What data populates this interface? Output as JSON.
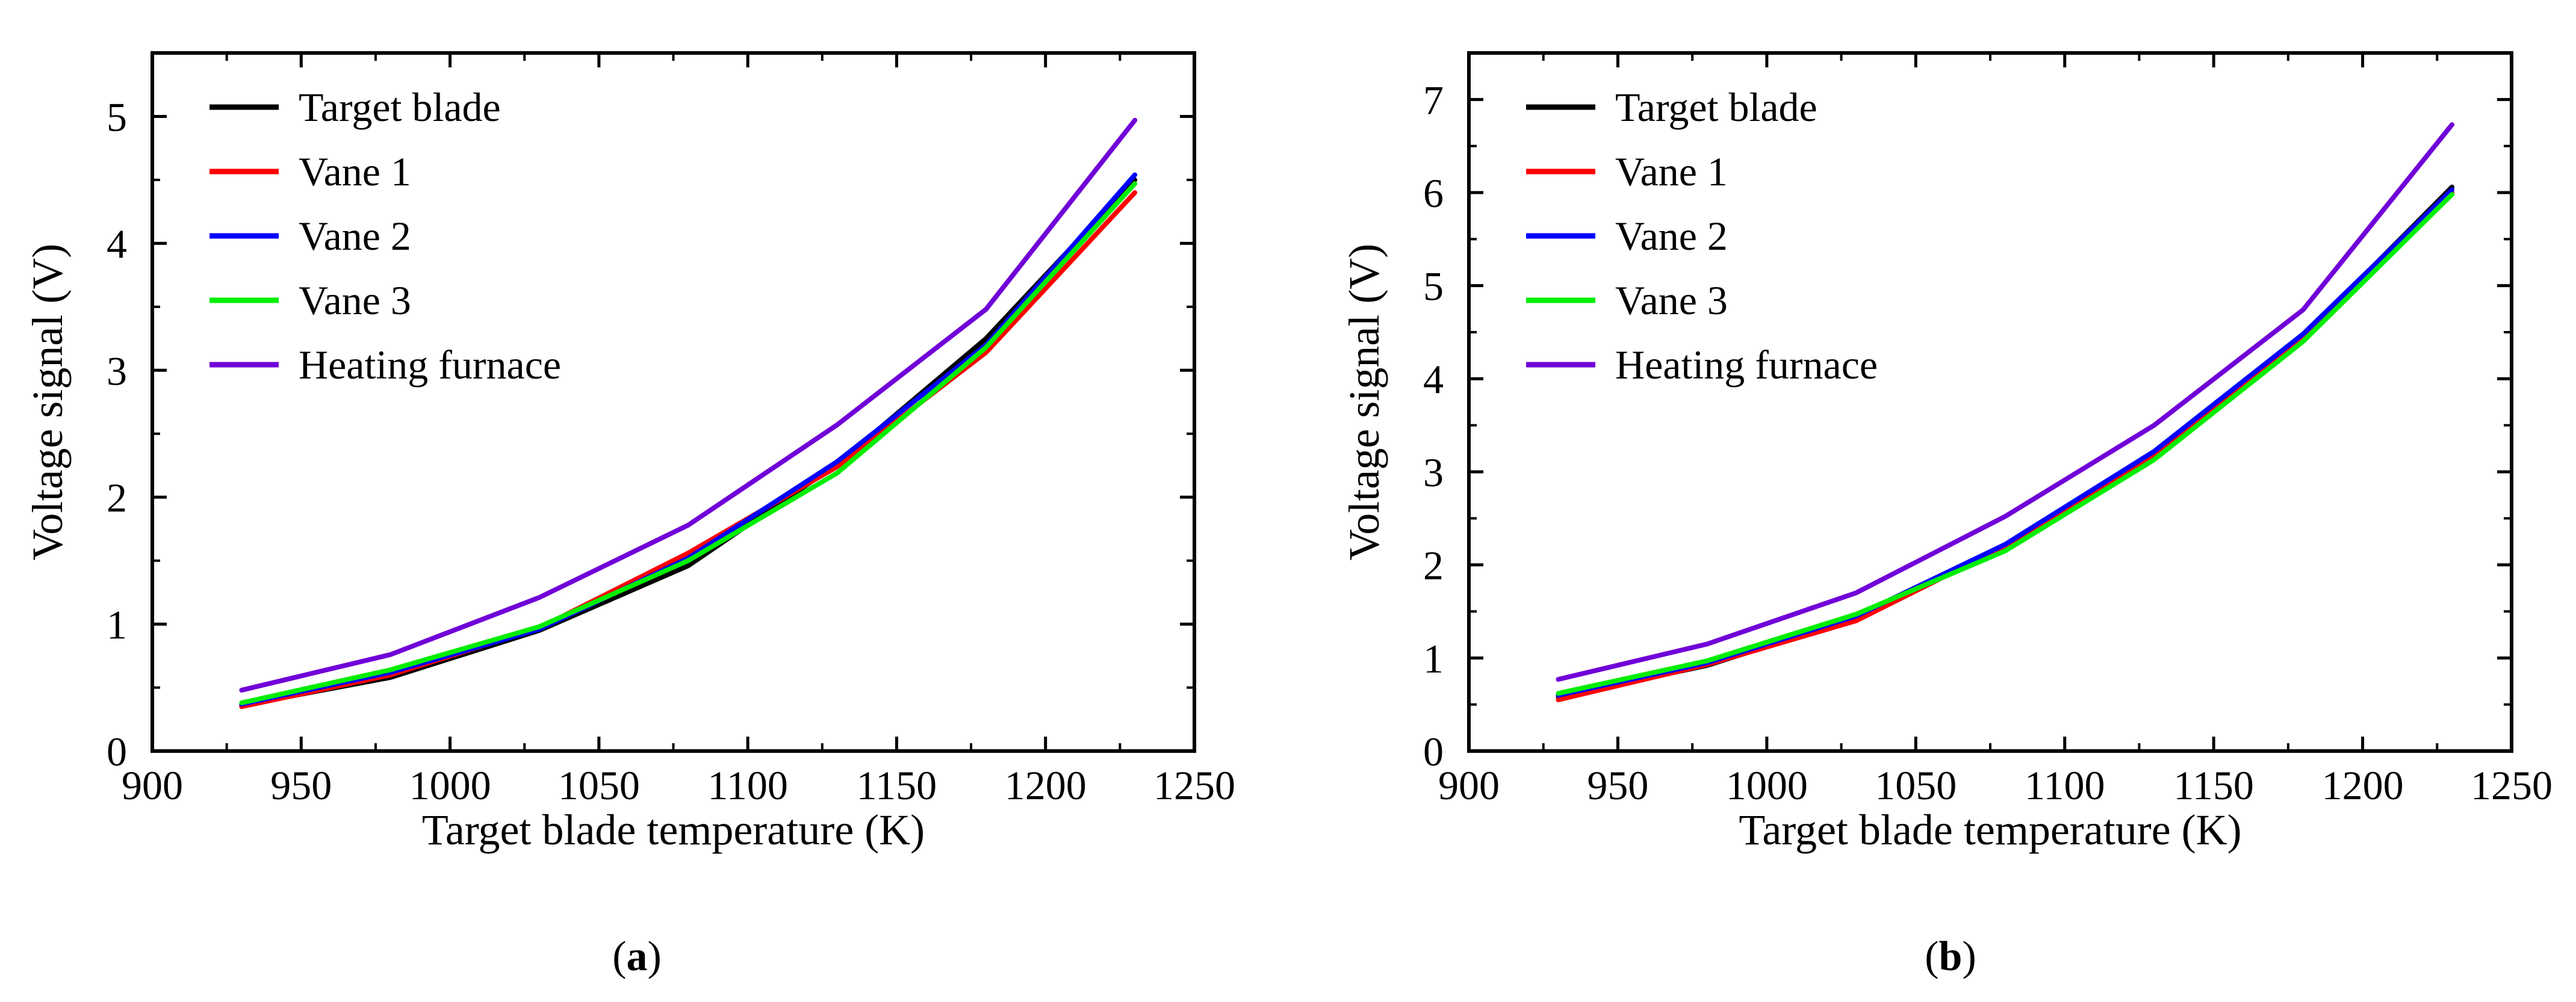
{
  "chart_data": [
    {
      "type": "line",
      "panel": "a",
      "caption_open": "(",
      "caption_letter": "a",
      "caption_close": ")",
      "title": "",
      "xlabel": "Target blade temperature (K)",
      "ylabel": "Voltage signal (V)",
      "xlim": [
        900,
        1250
      ],
      "ylim": [
        0,
        5.5
      ],
      "xticks": [
        900,
        950,
        1000,
        1050,
        1100,
        1150,
        1200,
        1250
      ],
      "yticks": [
        0,
        1,
        2,
        3,
        4,
        5
      ],
      "legend_position": "top-left",
      "x": [
        930,
        980,
        1030,
        1080,
        1130,
        1180,
        1230
      ],
      "series": [
        {
          "name": "Target blade",
          "color": "#000000",
          "values": [
            0.36,
            0.58,
            0.95,
            1.46,
            2.26,
            3.25,
            4.5
          ]
        },
        {
          "name": "Vane 1",
          "color": "#ff0000",
          "values": [
            0.35,
            0.6,
            0.97,
            1.56,
            2.24,
            3.14,
            4.4
          ]
        },
        {
          "name": "Vane 2",
          "color": "#0000ff",
          "values": [
            0.37,
            0.62,
            0.96,
            1.52,
            2.28,
            3.2,
            4.54
          ]
        },
        {
          "name": "Vane 3",
          "color": "#00ee00",
          "values": [
            0.38,
            0.64,
            0.98,
            1.5,
            2.19,
            3.18,
            4.47
          ]
        },
        {
          "name": "Heating furnace",
          "color": "#7000d8",
          "values": [
            0.48,
            0.76,
            1.21,
            1.78,
            2.57,
            3.48,
            4.97
          ]
        }
      ]
    },
    {
      "type": "line",
      "panel": "b",
      "caption_open": "(",
      "caption_letter": "b",
      "caption_close": ")",
      "title": "",
      "xlabel": "Target blade temperature (K)",
      "ylabel": "Voltage signal (V)",
      "xlim": [
        900,
        1250
      ],
      "ylim": [
        0,
        7.5
      ],
      "xticks": [
        900,
        950,
        1000,
        1050,
        1100,
        1150,
        1200,
        1250
      ],
      "yticks": [
        0,
        1,
        2,
        3,
        4,
        5,
        6,
        7
      ],
      "legend_position": "top-left",
      "x": [
        930,
        980,
        1030,
        1080,
        1130,
        1180,
        1230
      ],
      "series": [
        {
          "name": "Target blade",
          "color": "#000000",
          "values": [
            0.58,
            0.92,
            1.43,
            2.2,
            3.2,
            4.45,
            6.06
          ]
        },
        {
          "name": "Vane 1",
          "color": "#ff0000",
          "values": [
            0.55,
            0.93,
            1.4,
            2.2,
            3.18,
            4.42,
            6.0
          ]
        },
        {
          "name": "Vane 2",
          "color": "#0000ff",
          "values": [
            0.6,
            0.95,
            1.45,
            2.22,
            3.22,
            4.48,
            6.03
          ]
        },
        {
          "name": "Vane 3",
          "color": "#00ee00",
          "values": [
            0.62,
            0.97,
            1.47,
            2.15,
            3.13,
            4.4,
            5.98
          ]
        },
        {
          "name": "Heating furnace",
          "color": "#7000d8",
          "values": [
            0.77,
            1.15,
            1.7,
            2.52,
            3.5,
            4.74,
            6.73
          ]
        }
      ]
    }
  ]
}
